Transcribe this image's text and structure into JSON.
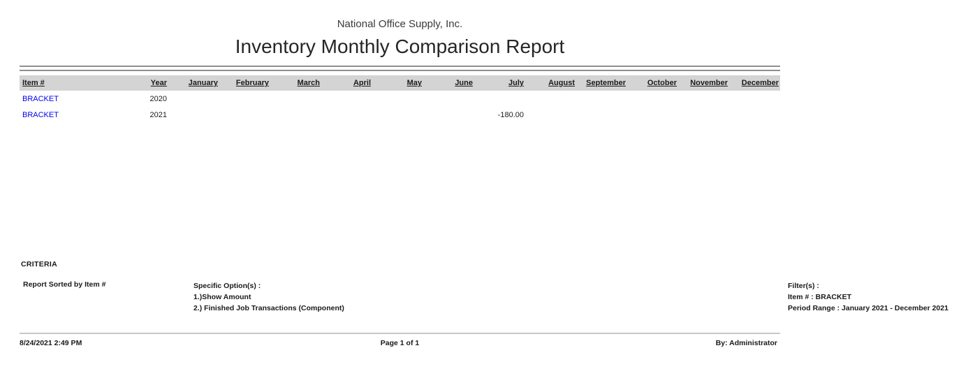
{
  "header": {
    "company": "National Office Supply, Inc.",
    "title": "Inventory Monthly Comparison Report"
  },
  "table": {
    "columns": [
      "Item #",
      "Year",
      "January",
      "February",
      "March",
      "April",
      "May",
      "June",
      "July",
      "August",
      "September",
      "October",
      "November",
      "December"
    ],
    "rows": [
      {
        "item": "BRACKET",
        "year": "2020",
        "values": [
          "",
          "",
          "",
          "",
          "",
          "",
          "",
          "",
          "",
          "",
          "",
          ""
        ]
      },
      {
        "item": "BRACKET",
        "year": "2021",
        "values": [
          "",
          "",
          "",
          "",
          "",
          "",
          "-180.00",
          "",
          "",
          "",
          "",
          ""
        ]
      }
    ]
  },
  "criteria": {
    "heading": "CRITERIA",
    "sorted_by": "Report Sorted by Item #",
    "options_label": "Specific Option(s) :",
    "options": [
      "1.)Show Amount",
      "2.) Finished Job Transactions (Component)"
    ],
    "filters_label": "Filter(s) :",
    "filters": [
      "Item # : BRACKET",
      "Period Range : January 2021 - December 2021"
    ]
  },
  "footer": {
    "datetime": "8/24/2021 2:49 PM",
    "page": "Page 1 of 1",
    "by": "By: Administrator"
  },
  "colors": {
    "link": "#0000EE",
    "header_bg": "#D4D4D4",
    "rule": "#8F8F8F",
    "footer_rule": "#C9C9C9",
    "text": "#1A1A1A"
  }
}
